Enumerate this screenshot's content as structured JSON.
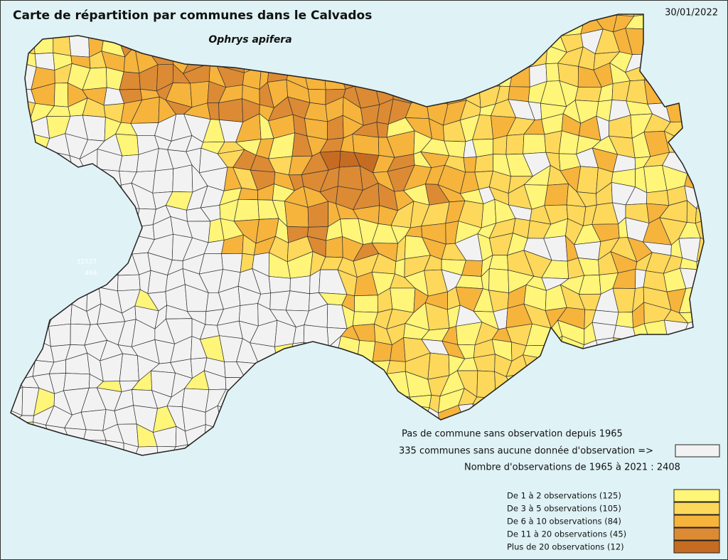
{
  "title": "Carte de répartition par communes dans le Calvados",
  "subtitle": "Ophrys apifera",
  "date": "30/01/2022",
  "map_labels": [
    "32527",
    "464"
  ],
  "notes": [
    "Pas de commune sans observation depuis 1965",
    "335 communes sans aucune donnée d'observation =>",
    "Nombre d'observations de 1965 à 2021 : 2408"
  ],
  "no_data_color": "#f2f2f2",
  "legend": [
    {
      "label": "De 1 à 2 observations (125)",
      "color": "#fff578"
    },
    {
      "label": "De 3 à 5 observations (105)",
      "color": "#fdd85a"
    },
    {
      "label": "De 6 à 10 observations (84)",
      "color": "#f6b43c"
    },
    {
      "label": "De 11 à 20 observations (45)",
      "color": "#dc8b34"
    },
    {
      "label": "Plus de 20 observations (12)",
      "color": "#c66c22"
    }
  ]
}
